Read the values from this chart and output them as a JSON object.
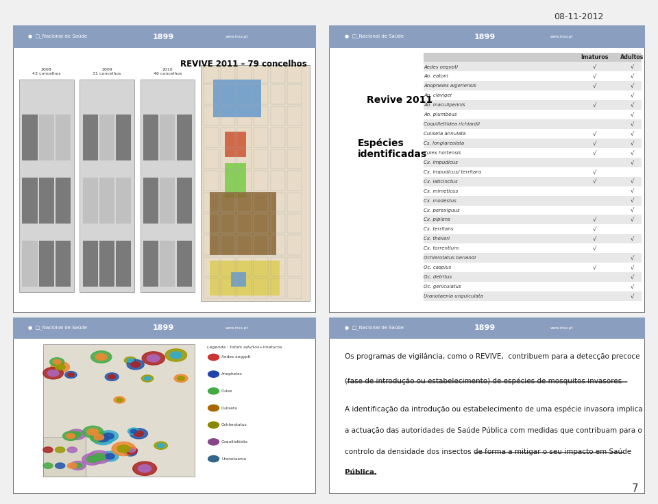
{
  "date_label": "08-11-2012",
  "page_number": "7",
  "background_color": "#f0f0f0",
  "panel_bg": "#ffffff",
  "header_bg": "#8a9fc0",
  "header_text": "#ffffff",
  "top_left_title": "REVIVE 2011 – 79 concelhos",
  "map_years": [
    "2008\n43 concelhos",
    "2009\n31 concelhos",
    "2010\n46 concelhos"
  ],
  "revive_label": "Revive 2011",
  "species_label": "Espécies\nidentificadas",
  "table_header": [
    "",
    "Imaturos",
    "Adultos"
  ],
  "table_rows": [
    [
      "Aedes oegypti",
      "√",
      "√"
    ],
    [
      "An. eatoni",
      "√",
      "√"
    ],
    [
      "Anopheles algeriensis",
      "√",
      "√"
    ],
    [
      "An. claviger",
      "",
      "√"
    ],
    [
      "An. maculipennis",
      "√",
      "√"
    ],
    [
      "An. plumbeus",
      "",
      "√"
    ],
    [
      "Coquillettidea richiardii",
      "",
      "√"
    ],
    [
      "Culiseta annulata",
      "√",
      "√"
    ],
    [
      "Cs. longiareolata",
      "√",
      "√"
    ],
    [
      "Culex hortensis",
      "√",
      "√"
    ],
    [
      "Cx. impudicus",
      "",
      "√"
    ],
    [
      "Cx. impudicus/ territans",
      "√",
      ""
    ],
    [
      "Cx. laticinctus",
      "√",
      "√"
    ],
    [
      "Cx. mimeticus",
      "",
      "√"
    ],
    [
      "Cx. modestus",
      "",
      "√"
    ],
    [
      "Cx. perexiguus",
      "",
      "√"
    ],
    [
      "Cx. pipiens",
      "√",
      "√"
    ],
    [
      "Cx. territans",
      "√",
      ""
    ],
    [
      "Cx. theileri",
      "√",
      "√"
    ],
    [
      "Cx. torrentium",
      "√",
      ""
    ],
    [
      "Ochlerotatus berlandi",
      "",
      "√"
    ],
    [
      "Oc. caspius",
      "√",
      "√"
    ],
    [
      "Oc. detritus",
      "",
      "√"
    ],
    [
      "Oc. geniculatus",
      "",
      "√"
    ],
    [
      "Uranotaenia unguiculata",
      "",
      "√"
    ]
  ],
  "row_colors": [
    "#e8e8e8",
    "#ffffff"
  ],
  "para1": "Os programas de vigilância, como o REVIVE,  contribuem para a detecção precoce",
  "para2_underline": "(fase de introdução ou estabelecimento) de espécies de mosquitos invasores",
  "para3": "A identificação da introdução ou estabelecimento de uma espécie invasora implica",
  "para4": "a actuação das autoridades de Saúde Pública com medidas que contribuam para o",
  "para5": "controlo da densidade dos insectos de forma a mitigar o seu",
  "para5_underline": "impacto em Saúde",
  "para6_underline": "Pública.",
  "border_color": "#555555",
  "text_color": "#1a1a1a",
  "table_text_color": "#333333"
}
